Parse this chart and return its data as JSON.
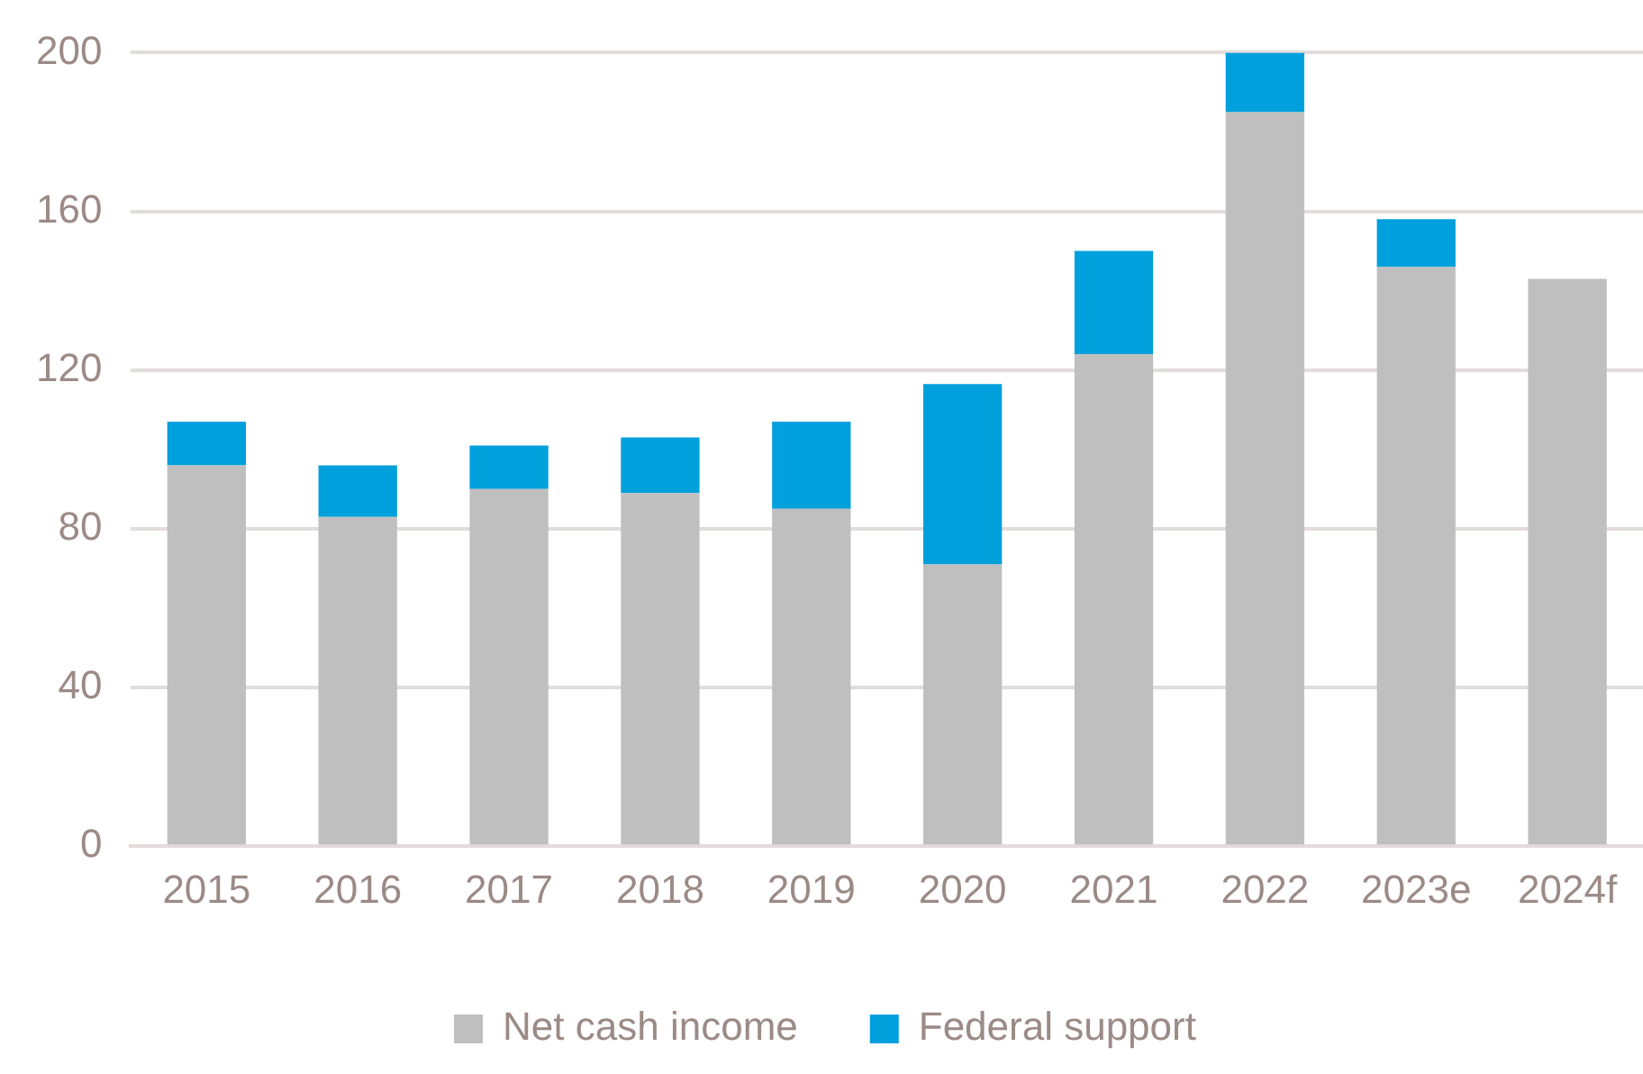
{
  "chart_data": {
    "type": "bar",
    "stacked": true,
    "categories": [
      "2015",
      "2016",
      "2017",
      "2018",
      "2019",
      "2020",
      "2021",
      "2022",
      "2023e",
      "2024f"
    ],
    "series": [
      {
        "name": "Net cash income",
        "color": "#bfbfbf",
        "values": [
          96,
          83,
          90,
          89,
          85,
          71,
          124,
          185,
          146,
          143
        ]
      },
      {
        "name": "Federal support",
        "color": "#00a0dc",
        "values": [
          11,
          13,
          11,
          14,
          22,
          45.5,
          26,
          15,
          12,
          null
        ]
      }
    ],
    "ylim": [
      0,
      200
    ],
    "yticks": [
      0,
      40,
      80,
      120,
      160,
      200
    ],
    "grid": "y",
    "legend": "bottom"
  }
}
